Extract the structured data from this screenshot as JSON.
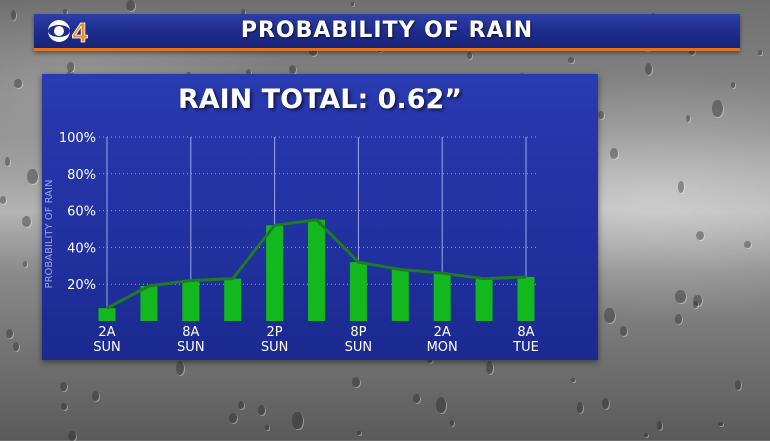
{
  "header": {
    "logo_text": "CBS4",
    "title": "PROBABILITY OF RAIN"
  },
  "panel": {
    "title": "RAIN TOTAL: 0.62”"
  },
  "colors": {
    "bar": "#12b81e",
    "line": "#1e7a25",
    "panel": "#2232a2",
    "accent": "#e2741b"
  },
  "chart_data": {
    "type": "bar",
    "ylabel": "PROBABILITY OF RAIN",
    "ylim": [
      0,
      100
    ],
    "yticks": [
      "100%",
      "80%",
      "60%",
      "40%",
      "20%"
    ],
    "ytick_values": [
      100,
      80,
      60,
      40,
      20
    ],
    "grid": true,
    "x_tick_labels": [
      {
        "line1": "2A",
        "line2": "SUN"
      },
      {
        "line1": "8A",
        "line2": "SUN"
      },
      {
        "line1": "2P",
        "line2": "SUN"
      },
      {
        "line1": "8P",
        "line2": "SUN"
      },
      {
        "line1": "2A",
        "line2": "MON"
      },
      {
        "line1": "8A",
        "line2": "TUE"
      }
    ],
    "values": [
      7,
      19,
      22,
      23,
      52,
      55,
      32,
      28,
      26,
      23,
      24
    ],
    "overlay_line": true
  }
}
